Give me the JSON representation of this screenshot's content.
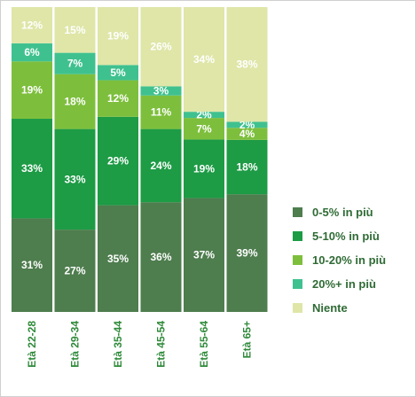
{
  "chart_data": {
    "type": "bar",
    "stacked": true,
    "percent": true,
    "categories": [
      "Età 22-28",
      "Età 29-34",
      "Età 35-44",
      "Età 45-54",
      "Età 55-64",
      "Età 65+"
    ],
    "series": [
      {
        "name": "0-5% in più",
        "color": "#4e7d4e",
        "values": [
          31,
          27,
          35,
          36,
          37,
          39
        ]
      },
      {
        "name": "5-10% in più",
        "color": "#1d9b45",
        "values": [
          33,
          33,
          29,
          24,
          19,
          18
        ]
      },
      {
        "name": "10-20% in più",
        "color": "#7dbf3c",
        "values": [
          19,
          18,
          12,
          11,
          7,
          4
        ]
      },
      {
        "name": "20%+ in più",
        "color": "#3fc18f",
        "values": [
          6,
          7,
          5,
          3,
          2,
          2
        ]
      },
      {
        "name": "Niente",
        "color": "#dfe6a8",
        "values": [
          12,
          15,
          19,
          26,
          34,
          38
        ]
      }
    ],
    "title": "",
    "xlabel": "",
    "ylabel": "",
    "ylim": [
      0,
      100
    ],
    "legend_position": "right",
    "grid": false
  }
}
